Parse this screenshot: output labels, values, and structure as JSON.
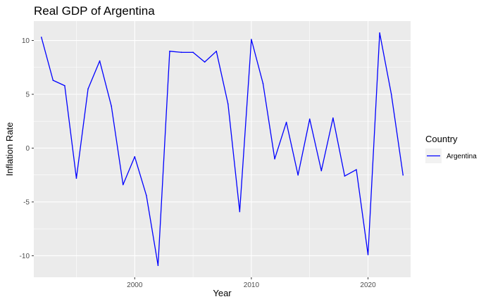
{
  "chart_data": {
    "type": "line",
    "title": "Real GDP of Argentina",
    "xlabel": "Year",
    "ylabel": "Inflation Rate",
    "xlim": [
      1991.35,
      2023.65
    ],
    "ylim": [
      -12.0,
      11.8
    ],
    "x_ticks": [
      2000,
      2010,
      2020
    ],
    "y_ticks": [
      -10,
      -5,
      0,
      5,
      10
    ],
    "x_tick_labels": [
      "2000",
      "2010",
      "2020"
    ],
    "y_tick_labels": [
      "-10",
      "-5",
      "0",
      "5",
      "10"
    ],
    "grid": true,
    "legend": {
      "title": "Country",
      "position": "right"
    },
    "series": [
      {
        "name": "Argentina",
        "color": "#0000FF",
        "x": [
          1992,
          1993,
          1994,
          1995,
          1996,
          1997,
          1998,
          1999,
          2000,
          2001,
          2002,
          2003,
          2004,
          2005,
          2006,
          2007,
          2008,
          2009,
          2010,
          2011,
          2012,
          2013,
          2014,
          2015,
          2016,
          2017,
          2018,
          2019,
          2020,
          2021,
          2022,
          2023
        ],
        "values": [
          10.3,
          6.3,
          5.8,
          -2.8,
          5.5,
          8.1,
          3.9,
          -3.4,
          -0.8,
          -4.4,
          -10.9,
          9.0,
          8.9,
          8.9,
          8.0,
          9.0,
          4.1,
          -5.9,
          10.1,
          6.0,
          -1.0,
          2.4,
          -2.5,
          2.7,
          -2.1,
          2.8,
          -2.6,
          -2.0,
          -9.9,
          10.7,
          5.0,
          -2.5
        ]
      }
    ]
  }
}
